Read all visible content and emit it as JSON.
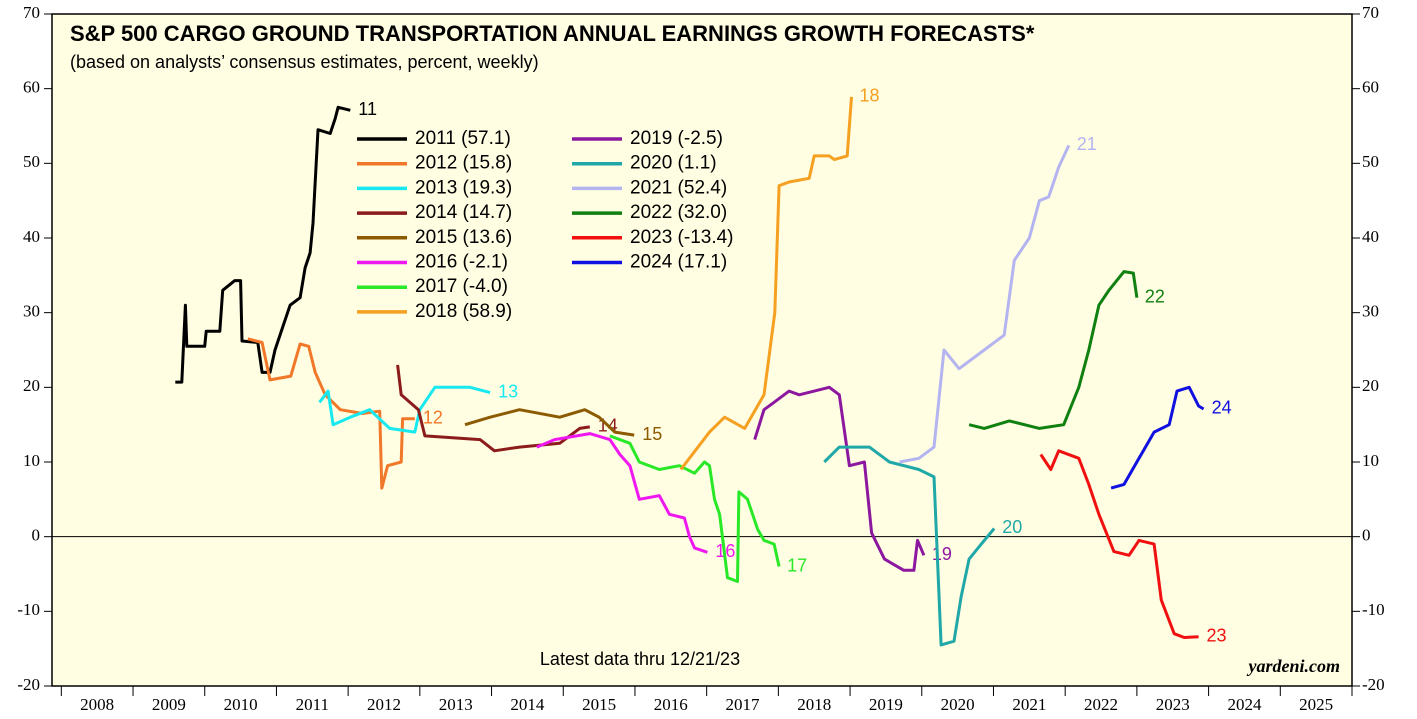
{
  "chart_data": {
    "type": "line",
    "title": "S&P 500 CARGO GROUND TRANSPORTATION ANNUAL EARNINGS GROWTH FORECASTS*",
    "subtitle": "(based on analysts’ consensus estimates, percent, weekly)",
    "annotation": "Latest data thru  12/21/23",
    "source": "yardeni.com",
    "xlim": [
      2007.87,
      2026
    ],
    "xticks": [
      2008,
      2009,
      2010,
      2011,
      2012,
      2013,
      2014,
      2015,
      2016,
      2017,
      2018,
      2019,
      2020,
      2021,
      2022,
      2023,
      2024,
      2025,
      2026
    ],
    "year_labels": [
      "2008",
      "2009",
      "2010",
      "2011",
      "2012",
      "2013",
      "2014",
      "2015",
      "2016",
      "2017",
      "2018",
      "2019",
      "2020",
      "2021",
      "2022",
      "2023",
      "2024",
      "2025"
    ],
    "ylim": [
      -20,
      70
    ],
    "yticks": [
      -20,
      -10,
      0,
      10,
      20,
      30,
      40,
      50,
      60,
      70
    ],
    "zero_line": 0,
    "series": [
      {
        "name": "2011 (57.1)",
        "end_label": "11",
        "color": "#000000",
        "x": [
          2009.59,
          2009.68,
          2009.73,
          2009.75,
          2010.0,
          2010.02,
          2010.21,
          2010.25,
          2010.42,
          2010.5,
          2010.52,
          2010.74,
          2010.8,
          2010.91,
          2010.98,
          2011.05,
          2011.19,
          2011.33,
          2011.4,
          2011.47,
          2011.51,
          2011.58,
          2011.75,
          2011.82,
          2011.86,
          2012.03
        ],
        "values": [
          20.7,
          20.7,
          31,
          25.5,
          25.5,
          27.5,
          27.5,
          33,
          34.3,
          34.3,
          26.2,
          26,
          22,
          22,
          25,
          27,
          31,
          32,
          36,
          38,
          42,
          54.5,
          54,
          56,
          57.5,
          57.1
        ]
      },
      {
        "name": "2012 (15.8)",
        "end_label": "12",
        "color": "#f07828",
        "x": [
          2010.6,
          2010.8,
          2010.91,
          2011.2,
          2011.33,
          2011.45,
          2011.54,
          2011.68,
          2011.89,
          2012.2,
          2012.44,
          2012.47,
          2012.55,
          2012.74,
          2012.76,
          2012.93
        ],
        "values": [
          26.5,
          26,
          21,
          21.5,
          25.8,
          25.5,
          22,
          19,
          17,
          16.5,
          16.8,
          6.5,
          9.5,
          10,
          15.8,
          15.8
        ]
      },
      {
        "name": "2013 (19.3)",
        "end_label": "13",
        "color": "#18e8f0",
        "x": [
          2011.6,
          2011.72,
          2011.79,
          2012.03,
          2012.3,
          2012.58,
          2012.93,
          2013.0,
          2013.21,
          2013.7,
          2013.98
        ],
        "values": [
          18,
          19.5,
          15,
          16,
          17,
          14.5,
          14,
          17,
          20,
          20,
          19.3
        ]
      },
      {
        "name": "2014 (14.7)",
        "end_label": "14",
        "color": "#8c1c1c",
        "x": [
          2012.69,
          2012.74,
          2012.86,
          2012.98,
          2013.07,
          2013.84,
          2014.04,
          2014.39,
          2014.95,
          2015.23,
          2015.37
        ],
        "values": [
          23,
          19,
          18,
          17,
          13.5,
          13,
          11.5,
          12,
          12.5,
          14.5,
          14.7
        ]
      },
      {
        "name": "2015 (13.6)",
        "end_label": "15",
        "color": "#8c5a00",
        "x": [
          2013.63,
          2013.98,
          2014.39,
          2014.95,
          2015.3,
          2015.5,
          2015.72,
          2015.99
        ],
        "values": [
          15,
          16,
          17,
          16,
          17,
          16,
          14,
          13.6
        ]
      },
      {
        "name": "2016 (-2.1)",
        "end_label": "16",
        "color": "#f018f0",
        "x": [
          2014.63,
          2014.88,
          2015.37,
          2015.65,
          2015.79,
          2015.93,
          2016.06,
          2016.34,
          2016.48,
          2016.69,
          2016.76,
          2016.83,
          2017.01
        ],
        "values": [
          12,
          13,
          13.8,
          13,
          11,
          9.5,
          5,
          5.5,
          3,
          2.5,
          0,
          -1.5,
          -2.1
        ]
      },
      {
        "name": "2017 (-4.0)",
        "end_label": "17",
        "color": "#28e828",
        "x": [
          2015.65,
          2015.93,
          2016.06,
          2016.34,
          2016.62,
          2016.83,
          2016.97,
          2017.04,
          2017.11,
          2017.18,
          2017.29,
          2017.43,
          2017.45,
          2017.57,
          2017.71,
          2017.8,
          2017.94,
          2018.01
        ],
        "values": [
          13.5,
          12.5,
          10,
          9,
          9.5,
          8.5,
          10,
          9.5,
          5,
          3,
          -5.5,
          -6,
          6,
          5,
          1,
          -0.5,
          -1,
          -4
        ]
      },
      {
        "name": "2018 (58.9)",
        "end_label": "18",
        "color": "#f5a020",
        "x": [
          2016.64,
          2017.04,
          2017.25,
          2017.53,
          2017.8,
          2017.95,
          2018.01,
          2018.15,
          2018.43,
          2018.5,
          2018.71,
          2018.78,
          2018.96,
          2019.02
        ],
        "values": [
          9,
          14,
          16,
          14.5,
          19,
          30,
          47,
          47.5,
          48,
          51,
          51,
          50.5,
          51,
          58.9
        ]
      },
      {
        "name": "2019 (-2.5)",
        "end_label": "19",
        "color": "#8c18a0",
        "x": [
          2017.67,
          2017.8,
          2017.94,
          2018.15,
          2018.29,
          2018.71,
          2018.85,
          2018.99,
          2019.2,
          2019.3,
          2019.48,
          2019.75,
          2019.89,
          2019.94,
          2020.03
        ],
        "values": [
          13,
          17,
          18,
          19.5,
          19,
          20,
          19,
          9.5,
          10,
          0.5,
          -3,
          -4.5,
          -4.5,
          -0.5,
          -2.5
        ]
      },
      {
        "name": "2020 (1.1)",
        "end_label": "20",
        "color": "#20a8a8",
        "x": [
          2018.64,
          2018.85,
          2019.27,
          2019.55,
          2019.96,
          2020.17,
          2020.27,
          2020.45,
          2020.55,
          2020.66,
          2020.83,
          2021.01
        ],
        "values": [
          10,
          12,
          12,
          10,
          9,
          8,
          -14.5,
          -14,
          -8,
          -3,
          -1,
          1.1
        ]
      },
      {
        "name": "2021 (52.4)",
        "end_label": "21",
        "color": "#b4b4f0",
        "x": [
          2019.69,
          2019.96,
          2020.17,
          2020.31,
          2020.52,
          2020.87,
          2021.15,
          2021.29,
          2021.5,
          2021.64,
          2021.77,
          2021.91,
          2022.05
        ],
        "values": [
          10,
          10.5,
          12,
          25,
          22.5,
          25,
          27,
          37,
          40,
          45,
          45.5,
          49.5,
          52.4
        ]
      },
      {
        "name": "2022 (32.0)",
        "end_label": "22",
        "color": "#108010",
        "x": [
          2020.66,
          2020.87,
          2021.22,
          2021.64,
          2021.98,
          2022.19,
          2022.33,
          2022.47,
          2022.61,
          2022.82,
          2022.95,
          2023.0
        ],
        "values": [
          15,
          14.5,
          15.5,
          14.5,
          15,
          20,
          25,
          31,
          33,
          35.5,
          35.3,
          32
        ]
      },
      {
        "name": "2023 (-13.4)",
        "end_label": "23",
        "color": "#f01010",
        "x": [
          2021.66,
          2021.8,
          2021.91,
          2022.19,
          2022.33,
          2022.47,
          2022.68,
          2022.89,
          2023.03,
          2023.24,
          2023.34,
          2023.52,
          2023.66,
          2023.86
        ],
        "values": [
          11,
          9,
          11.5,
          10.5,
          7,
          3,
          -2,
          -2.5,
          -0.5,
          -1,
          -8.5,
          -13,
          -13.5,
          -13.4
        ]
      },
      {
        "name": "2024 (17.1)",
        "end_label": "24",
        "color": "#1010e0",
        "x": [
          2022.64,
          2022.82,
          2023.03,
          2023.24,
          2023.45,
          2023.56,
          2023.73,
          2023.86,
          2023.93
        ],
        "values": [
          6.5,
          7,
          10.5,
          14,
          15,
          19.5,
          20,
          17.5,
          17.1
        ]
      }
    ]
  }
}
